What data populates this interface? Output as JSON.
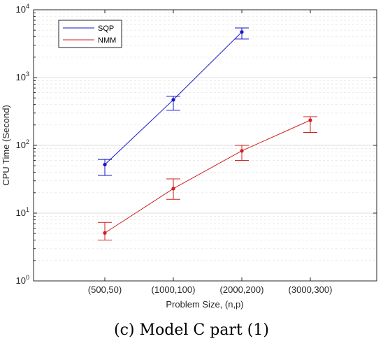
{
  "chart_data": {
    "type": "line",
    "ylabel": "CPU Time (Second)",
    "xlabel": "Problem Size, (n,p)",
    "categories": [
      "(500,50)",
      "(1000,100)",
      "(2000,200)",
      "(3000,300)"
    ],
    "yscale": "log",
    "ylim": [
      1,
      10000
    ],
    "y_ticks": [
      {
        "base": "10",
        "exp": "0"
      },
      {
        "base": "10",
        "exp": "1"
      },
      {
        "base": "10",
        "exp": "2"
      },
      {
        "base": "10",
        "exp": "3"
      },
      {
        "base": "10",
        "exp": "4"
      }
    ],
    "grid": true,
    "legend_position": "top-left",
    "series": [
      {
        "name": "SQP",
        "color": "#1414c8",
        "values": [
          52,
          470,
          4700,
          null
        ],
        "err_low": [
          36,
          330,
          3700,
          null
        ],
        "err_high": [
          62,
          530,
          5400,
          null
        ]
      },
      {
        "name": "NMM",
        "color": "#d21e1e",
        "values": [
          5.1,
          23,
          83,
          235
        ],
        "err_low": [
          4.0,
          16,
          60,
          155
        ],
        "err_high": [
          7.3,
          32,
          100,
          265
        ]
      }
    ]
  },
  "caption": "(c) Model C part (1)"
}
